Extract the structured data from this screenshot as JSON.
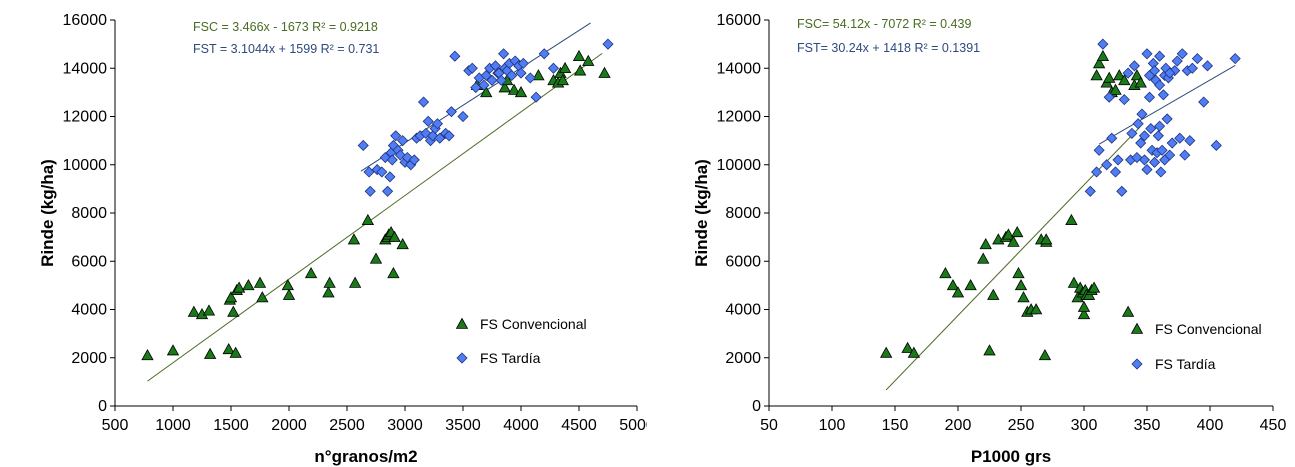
{
  "colors": {
    "conv_fill": "#1a7a1a",
    "tard_fill": "#4f7df5",
    "eq_conv": "#4a6b22",
    "eq_tard": "#2e4a7e",
    "trend": "#4a6b22"
  },
  "chart_data": [
    {
      "type": "scatter",
      "xlabel": "n°granos/m2",
      "ylabel": "Rinde (kg/ha)",
      "xlim": [
        500,
        5000
      ],
      "ylim": [
        0,
        16000
      ],
      "xticks": [
        "500",
        "1000",
        "1500",
        "2000",
        "2500",
        "3000",
        "3500",
        "4000",
        "4500",
        "5000"
      ],
      "yticks": [
        "0",
        "2000",
        "4000",
        "6000",
        "8000",
        "10000",
        "12000",
        "14000",
        "16000"
      ],
      "annotations": [
        "FSC = 3.466x - 1673 R² = 0.9218",
        "FST = 3.1044x + 1599 R² = 0.731"
      ],
      "legend": [
        "FS Convencional",
        "FS Tardía"
      ],
      "legend_position": "bottom-right",
      "series": [
        {
          "name": "FS Convencional",
          "marker": "triangle",
          "trend": {
            "slope": 3.466,
            "intercept": -1673,
            "x_range": [
              780,
              4700
            ]
          },
          "x": [
            780,
            1000,
            1180,
            1250,
            1310,
            1320,
            1480,
            1490,
            1500,
            1520,
            1540,
            1550,
            1570,
            1650,
            1750,
            1770,
            1990,
            2000,
            2190,
            2340,
            2350,
            2560,
            2570,
            2680,
            2750,
            2830,
            2850,
            2860,
            2880,
            2900,
            2910,
            2980,
            3620,
            3700,
            3860,
            3880,
            3940,
            4000,
            4150,
            4280,
            4320,
            4340,
            4360,
            4380,
            4500,
            4510,
            4580,
            4720
          ],
          "y": [
            2100,
            2300,
            3900,
            3800,
            3950,
            2150,
            2350,
            4400,
            4500,
            3900,
            2200,
            4800,
            4900,
            5000,
            5100,
            4500,
            5000,
            4600,
            5500,
            4700,
            5100,
            6900,
            5100,
            7700,
            6100,
            6900,
            7000,
            7100,
            7200,
            5500,
            7000,
            6700,
            13300,
            13000,
            13200,
            13500,
            13100,
            13000,
            13700,
            13500,
            13400,
            13800,
            13500,
            14000,
            14500,
            13900,
            14300,
            13800
          ]
        },
        {
          "name": "FS Tardía",
          "marker": "diamond",
          "trend": {
            "slope": 3.1044,
            "intercept": 1599,
            "x_range": [
              2620,
              4600
            ]
          },
          "x": [
            2640,
            2690,
            2700,
            2760,
            2800,
            2830,
            2850,
            2870,
            2880,
            2890,
            2900,
            2920,
            2940,
            2960,
            2980,
            3000,
            3020,
            3050,
            3080,
            3100,
            3130,
            3160,
            3180,
            3200,
            3220,
            3240,
            3260,
            3280,
            3300,
            3350,
            3380,
            3400,
            3430,
            3500,
            3550,
            3580,
            3610,
            3640,
            3680,
            3700,
            3730,
            3750,
            3780,
            3800,
            3810,
            3830,
            3850,
            3860,
            3880,
            3900,
            3920,
            3950,
            3980,
            4000,
            4020,
            4080,
            4130,
            4200,
            4280,
            4750
          ],
          "y": [
            10800,
            9700,
            8900,
            9800,
            9700,
            10300,
            8900,
            9500,
            10500,
            10200,
            10800,
            11200,
            10600,
            10400,
            11000,
            10100,
            10300,
            10000,
            10200,
            11100,
            11200,
            12600,
            11300,
            11800,
            11000,
            11200,
            11500,
            11700,
            11100,
            11300,
            11200,
            12200,
            14500,
            12000,
            13900,
            14000,
            13200,
            13600,
            13300,
            13700,
            14000,
            13500,
            14100,
            13800,
            13800,
            13500,
            14600,
            14000,
            13900,
            14200,
            13700,
            14300,
            14100,
            13800,
            14200,
            13600,
            12800,
            14600,
            14000,
            15000
          ]
        }
      ]
    },
    {
      "type": "scatter",
      "xlabel": "P1000 grs",
      "ylabel": "Rinde (kg/ha)",
      "xlim": [
        50,
        450
      ],
      "ylim": [
        0,
        16000
      ],
      "xticks": [
        "50",
        "100",
        "150",
        "200",
        "250",
        "300",
        "350",
        "400",
        "450"
      ],
      "yticks": [
        "0",
        "2000",
        "4000",
        "6000",
        "8000",
        "10000",
        "12000",
        "14000",
        "16000"
      ],
      "annotations": [
        "FSC= 54.12x - 7072 R² = 0.439",
        "FST= 30.24x + 1418 R² = 0.1391"
      ],
      "legend": [
        "FS Convencional",
        "FS Tardía"
      ],
      "legend_position": "bottom-right",
      "series": [
        {
          "name": "FS Convencional",
          "marker": "triangle",
          "trend": {
            "slope": 54.12,
            "intercept": -7072,
            "x_range": [
              143,
              345
            ]
          },
          "x": [
            143,
            160,
            165,
            190,
            196,
            200,
            210,
            220,
            222,
            225,
            228,
            232,
            238,
            240,
            244,
            247,
            248,
            250,
            252,
            255,
            258,
            262,
            266,
            269,
            270,
            290,
            292,
            295,
            297,
            299,
            300,
            301,
            302,
            304,
            306,
            308,
            310,
            312,
            315,
            318,
            320,
            322,
            325,
            328,
            332,
            335,
            340,
            342,
            345,
            300,
            270
          ],
          "y": [
            2200,
            2400,
            2200,
            5500,
            5000,
            4700,
            5000,
            6100,
            6700,
            2300,
            4600,
            6900,
            7000,
            7100,
            6800,
            7200,
            5500,
            5000,
            4500,
            3900,
            4000,
            4000,
            6900,
            2100,
            6800,
            7700,
            5100,
            4500,
            4900,
            4700,
            3800,
            4800,
            4600,
            4600,
            4800,
            4900,
            13700,
            14200,
            14500,
            13400,
            13600,
            13000,
            13100,
            13700,
            13500,
            3900,
            13300,
            13700,
            13400,
            4100,
            6900
          ]
        },
        {
          "name": "FS Tardía",
          "marker": "diamond",
          "trend": {
            "slope": 30.24,
            "intercept": 1418,
            "x_range": [
              312,
              420
            ]
          },
          "x": [
            305,
            310,
            312,
            315,
            318,
            320,
            322,
            325,
            327,
            330,
            332,
            335,
            337,
            338,
            340,
            342,
            343,
            345,
            346,
            348,
            350,
            350,
            352,
            353,
            354,
            355,
            356,
            357,
            358,
            359,
            360,
            360,
            361,
            362,
            363,
            364,
            365,
            366,
            367,
            368,
            370,
            372,
            374,
            376,
            378,
            380,
            382,
            384,
            386,
            390,
            395,
            398,
            405,
            420,
            348,
            352,
            356,
            360,
            364,
            368
          ],
          "y": [
            8900,
            9700,
            10600,
            15000,
            10000,
            12800,
            11100,
            9700,
            10200,
            8900,
            12700,
            13800,
            10200,
            11300,
            14100,
            10300,
            11700,
            10900,
            12100,
            10200,
            9800,
            14600,
            13700,
            11500,
            10600,
            14200,
            13900,
            13500,
            10500,
            11200,
            13300,
            14500,
            9700,
            10600,
            12900,
            13700,
            14000,
            11900,
            13600,
            10400,
            10900,
            13900,
            14300,
            11100,
            14600,
            10400,
            13900,
            11000,
            14000,
            14400,
            12600,
            14100,
            10800,
            14400,
            11200,
            12800,
            10100,
            11600,
            10200,
            13800
          ]
        }
      ]
    }
  ]
}
